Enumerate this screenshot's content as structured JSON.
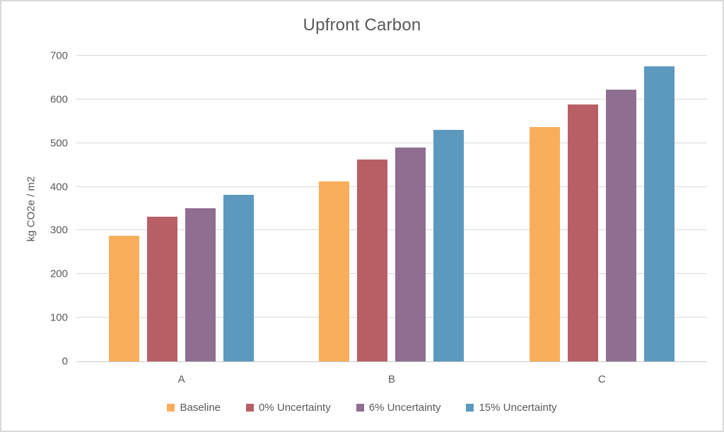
{
  "chart_data": {
    "type": "bar",
    "title": "Upfront Carbon",
    "xlabel": "",
    "ylabel": "kg CO2e / m2",
    "categories": [
      "A",
      "B",
      "C"
    ],
    "series": [
      {
        "name": "Baseline",
        "color": "#F9AE5B",
        "values": [
          287,
          412,
          537
        ]
      },
      {
        "name": "0% Uncertainty",
        "color": "#B85F66",
        "values": [
          331,
          462,
          588
        ]
      },
      {
        "name": "6% Uncertainty",
        "color": "#8F6E91",
        "values": [
          351,
          490,
          623
        ]
      },
      {
        "name": "15% Uncertainty",
        "color": "#5B9ABE",
        "values": [
          381,
          531,
          676
        ]
      }
    ],
    "ylim": [
      0,
      700
    ],
    "yticks": [
      0,
      100,
      200,
      300,
      400,
      500,
      600,
      700
    ],
    "grid": true,
    "legend_position": "bottom",
    "text_color": "#595959",
    "gridline_color": "#D9D9D9"
  }
}
